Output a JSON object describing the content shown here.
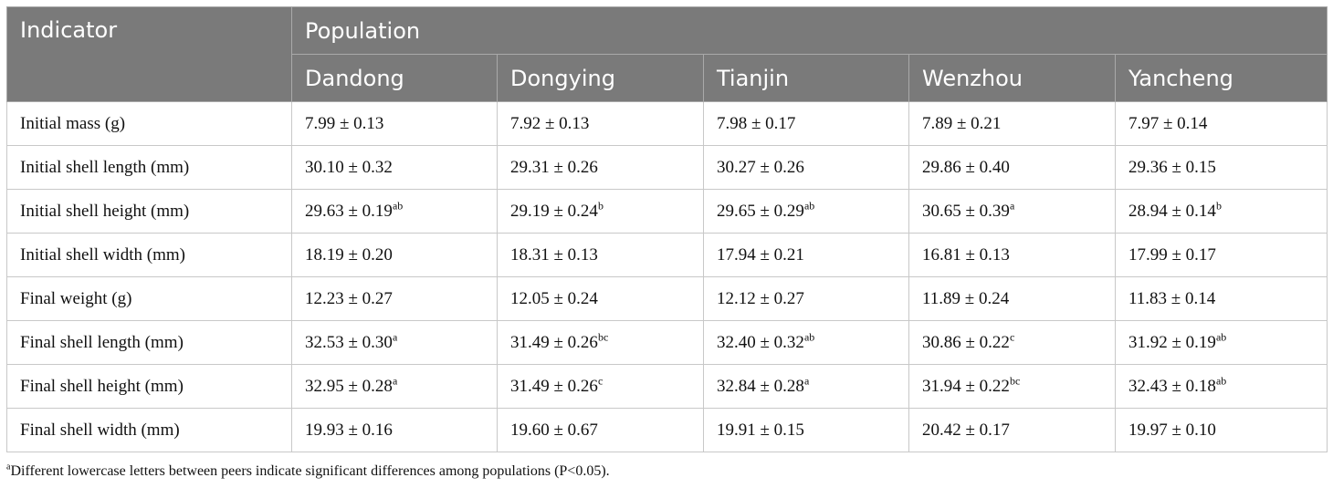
{
  "table": {
    "indicator_header": "Indicator",
    "population_header": "Population",
    "columns": [
      "Dandong",
      "Dongying",
      "Tianjin",
      "Wenzhou",
      "Yancheng"
    ],
    "rows": [
      {
        "label": "Initial mass (g)",
        "cells": [
          {
            "v": "7.99 ± 0.13",
            "s": ""
          },
          {
            "v": "7.92 ± 0.13",
            "s": ""
          },
          {
            "v": "7.98 ± 0.17",
            "s": ""
          },
          {
            "v": "7.89 ± 0.21",
            "s": ""
          },
          {
            "v": "7.97 ± 0.14",
            "s": ""
          }
        ]
      },
      {
        "label": "Initial shell length (mm)",
        "cells": [
          {
            "v": "30.10 ± 0.32",
            "s": ""
          },
          {
            "v": "29.31 ± 0.26",
            "s": ""
          },
          {
            "v": "30.27 ± 0.26",
            "s": ""
          },
          {
            "v": "29.86 ± 0.40",
            "s": ""
          },
          {
            "v": "29.36 ± 0.15",
            "s": ""
          }
        ]
      },
      {
        "label": "Initial shell height (mm)",
        "cells": [
          {
            "v": "29.63 ± 0.19",
            "s": "ab"
          },
          {
            "v": "29.19 ± 0.24",
            "s": "b"
          },
          {
            "v": "29.65 ± 0.29",
            "s": "ab"
          },
          {
            "v": "30.65 ± 0.39",
            "s": "a"
          },
          {
            "v": "28.94 ± 0.14",
            "s": "b"
          }
        ]
      },
      {
        "label": "Initial shell width (mm)",
        "cells": [
          {
            "v": "18.19 ± 0.20",
            "s": ""
          },
          {
            "v": "18.31 ± 0.13",
            "s": ""
          },
          {
            "v": "17.94 ± 0.21",
            "s": ""
          },
          {
            "v": "16.81 ± 0.13",
            "s": ""
          },
          {
            "v": "17.99 ± 0.17",
            "s": ""
          }
        ]
      },
      {
        "label": "Final weight (g)",
        "cells": [
          {
            "v": "12.23 ± 0.27",
            "s": ""
          },
          {
            "v": "12.05 ± 0.24",
            "s": ""
          },
          {
            "v": "12.12 ± 0.27",
            "s": ""
          },
          {
            "v": "11.89 ± 0.24",
            "s": ""
          },
          {
            "v": "11.83 ± 0.14",
            "s": ""
          }
        ]
      },
      {
        "label": "Final shell length (mm)",
        "cells": [
          {
            "v": "32.53 ± 0.30",
            "s": "a"
          },
          {
            "v": "31.49 ± 0.26",
            "s": "bc"
          },
          {
            "v": "32.40 ± 0.32",
            "s": "ab"
          },
          {
            "v": "30.86 ± 0.22",
            "s": "c"
          },
          {
            "v": "31.92 ± 0.19",
            "s": "ab"
          }
        ]
      },
      {
        "label": "Final shell height (mm)",
        "cells": [
          {
            "v": "32.95 ± 0.28",
            "s": "a"
          },
          {
            "v": "31.49 ± 0.26",
            "s": "c"
          },
          {
            "v": "32.84 ± 0.28",
            "s": "a"
          },
          {
            "v": "31.94 ± 0.22",
            "s": "bc"
          },
          {
            "v": "32.43 ± 0.18",
            "s": "ab"
          }
        ]
      },
      {
        "label": "Final shell width (mm)",
        "cells": [
          {
            "v": "19.93 ± 0.16",
            "s": ""
          },
          {
            "v": "19.60 ± 0.67",
            "s": ""
          },
          {
            "v": "19.91 ± 0.15",
            "s": ""
          },
          {
            "v": "20.42 ± 0.17",
            "s": ""
          },
          {
            "v": "19.97 ± 0.10",
            "s": ""
          }
        ]
      }
    ]
  },
  "footnote": {
    "marker": "a",
    "text": "Different lowercase letters between peers indicate significant differences among populations (P<0.05)."
  },
  "colors": {
    "header_bg": "#7a7a7a",
    "header_text": "#ffffff",
    "border": "#c8c8c8"
  }
}
